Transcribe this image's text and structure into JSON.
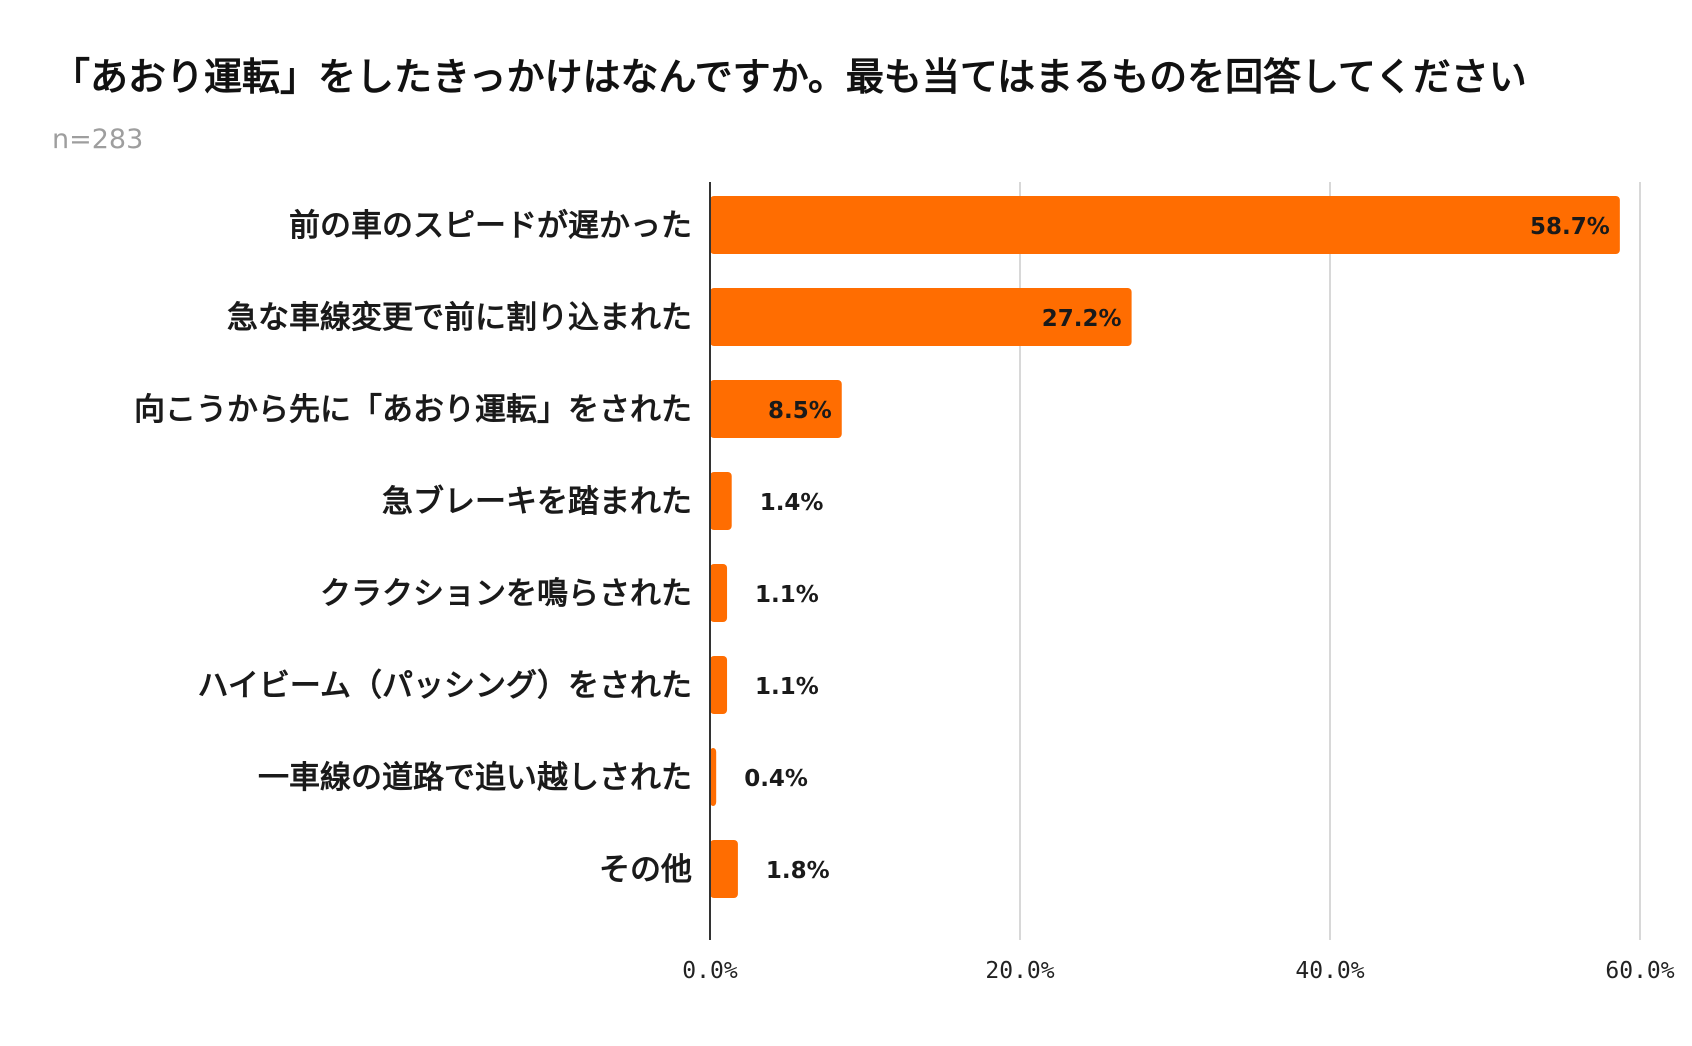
{
  "chart_data": {
    "type": "bar",
    "orientation": "horizontal",
    "title": "「あおり運転」をしたきっかけはなんですか。最も当てはまるものを回答してください",
    "subtitle": "n=283",
    "categories": [
      "前の車のスピードが遅かった",
      "急な車線変更で前に割り込まれた",
      "向こうから先に「あおり運転」をされた",
      "急ブレーキを踏まれた",
      "クラクションを鳴らされた",
      "ハイビーム（パッシング）をされた",
      "一車線の道路で追い越しされた",
      "その他"
    ],
    "values": [
      58.7,
      27.2,
      8.5,
      1.4,
      1.1,
      1.1,
      0.4,
      1.8
    ],
    "data_labels": [
      "58.7%",
      "27.2%",
      "8.5%",
      "1.4%",
      "1.1%",
      "1.1%",
      "0.4%",
      "1.8%"
    ],
    "xlim": [
      0,
      60
    ],
    "x_ticks": [
      0,
      20,
      40,
      60
    ],
    "x_tick_labels": [
      "0.0%",
      "20.0%",
      "40.0%",
      "60.0%"
    ],
    "xlabel": "",
    "ylabel": "",
    "grid": true,
    "legend": "none",
    "bar_color": "#ff6d01",
    "grid_color": "#cccccc",
    "axis_color": "#333333"
  }
}
